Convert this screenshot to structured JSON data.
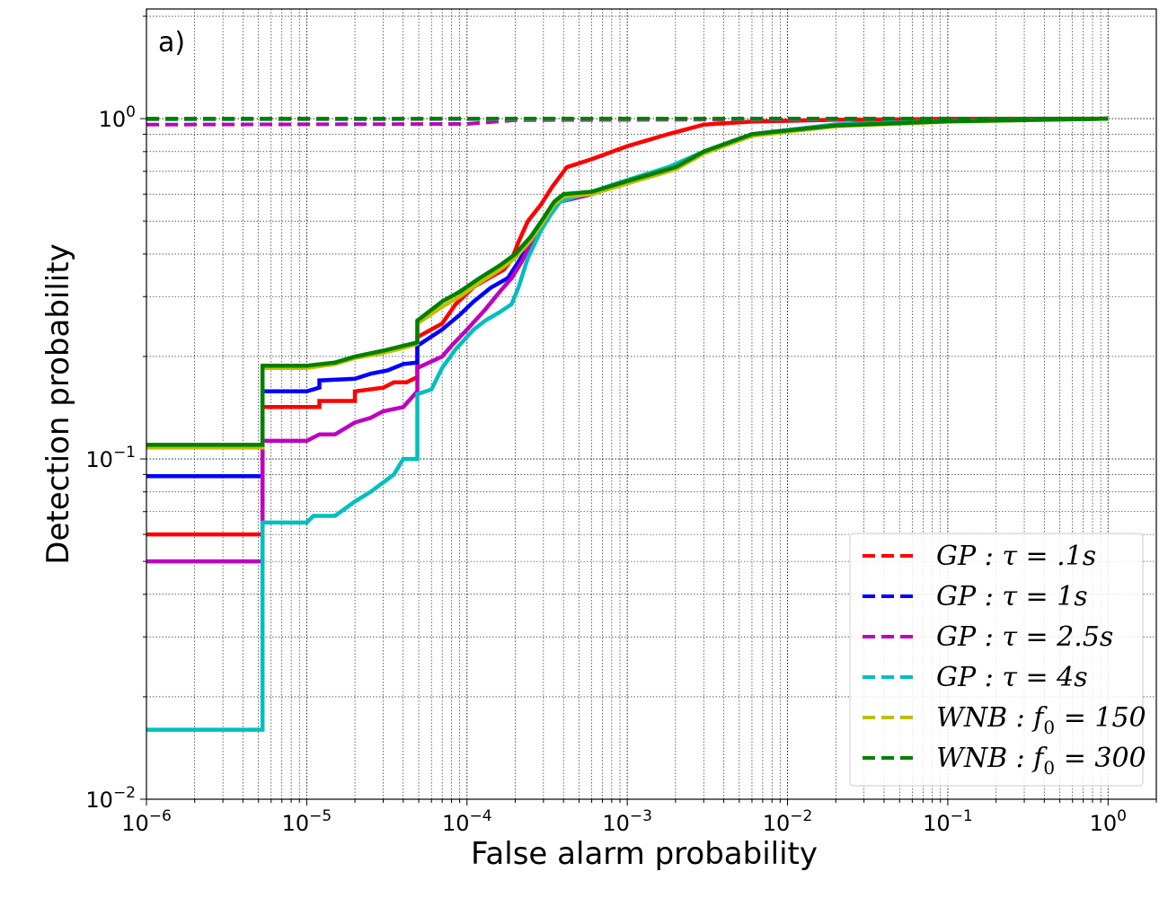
{
  "chart_data": {
    "type": "line",
    "panel_label": "a)",
    "xlabel": "False alarm probability",
    "ylabel": "Detection probability",
    "xscale": "log",
    "yscale": "log",
    "xlim": [
      1e-06,
      2
    ],
    "ylim": [
      0.01,
      2.1
    ],
    "grid": "major and minor, dotted",
    "legend_position": "lower-right",
    "x_ticks": [
      {
        "value": 1e-06,
        "base": "10",
        "exp": "−6"
      },
      {
        "value": 1e-05,
        "base": "10",
        "exp": "−5"
      },
      {
        "value": 0.0001,
        "base": "10",
        "exp": "−4"
      },
      {
        "value": 0.001,
        "base": "10",
        "exp": "−3"
      },
      {
        "value": 0.01,
        "base": "10",
        "exp": "−2"
      },
      {
        "value": 0.1,
        "base": "10",
        "exp": "−1"
      },
      {
        "value": 1,
        "base": "10",
        "exp": "0"
      }
    ],
    "y_ticks": [
      {
        "value": 0.01,
        "base": "10",
        "exp": "−2"
      },
      {
        "value": 0.1,
        "base": "10",
        "exp": "−1"
      },
      {
        "value": 1,
        "base": "10",
        "exp": "0"
      }
    ],
    "series": [
      {
        "name": "GP : τ = .1s",
        "legend": {
          "pre": "GP",
          "sub": "",
          "post": " : τ = .1s"
        },
        "color": "#ff0000",
        "roc": [
          [
            1e-06,
            0.06
          ],
          [
            5.3e-06,
            0.06
          ],
          [
            5.3e-06,
            0.142
          ],
          [
            1.2e-05,
            0.142
          ],
          [
            1.2e-05,
            0.148
          ],
          [
            2e-05,
            0.148
          ],
          [
            2e-05,
            0.158
          ],
          [
            3e-05,
            0.162
          ],
          [
            3.5e-05,
            0.168
          ],
          [
            4.2e-05,
            0.168
          ],
          [
            4.9e-05,
            0.174
          ],
          [
            4.9e-05,
            0.228
          ],
          [
            7e-05,
            0.25
          ],
          [
            8.5e-05,
            0.285
          ],
          [
            0.00011,
            0.32
          ],
          [
            0.00014,
            0.342
          ],
          [
            0.00017,
            0.36
          ],
          [
            0.00019,
            0.385
          ],
          [
            0.00021,
            0.435
          ],
          [
            0.00024,
            0.5
          ],
          [
            0.00029,
            0.56
          ],
          [
            0.00034,
            0.63
          ],
          [
            0.00042,
            0.72
          ],
          [
            0.0006,
            0.76
          ],
          [
            0.001,
            0.83
          ],
          [
            0.0018,
            0.9
          ],
          [
            0.003,
            0.96
          ],
          [
            0.006,
            0.98
          ],
          [
            0.02,
            0.992
          ],
          [
            0.1,
            0.998
          ],
          [
            1,
            1.0
          ]
        ],
        "bound": [
          [
            1e-06,
            0.998
          ],
          [
            1,
            1.0
          ]
        ]
      },
      {
        "name": "GP : τ = 1s",
        "legend": {
          "pre": "GP",
          "sub": "",
          "post": " : τ = 1s"
        },
        "color": "#0000ff",
        "roc": [
          [
            1e-06,
            0.089
          ],
          [
            5.3e-06,
            0.089
          ],
          [
            5.3e-06,
            0.158
          ],
          [
            1e-05,
            0.158
          ],
          [
            1.2e-05,
            0.162
          ],
          [
            1.2e-05,
            0.17
          ],
          [
            2e-05,
            0.172
          ],
          [
            2.5e-05,
            0.178
          ],
          [
            3.2e-05,
            0.182
          ],
          [
            4e-05,
            0.19
          ],
          [
            4.9e-05,
            0.192
          ],
          [
            4.9e-05,
            0.215
          ],
          [
            7e-05,
            0.24
          ],
          [
            9e-05,
            0.265
          ],
          [
            0.00011,
            0.29
          ],
          [
            0.00014,
            0.318
          ],
          [
            0.00018,
            0.34
          ],
          [
            0.00021,
            0.38
          ],
          [
            0.00024,
            0.42
          ],
          [
            0.00028,
            0.46
          ],
          [
            0.00033,
            0.52
          ],
          [
            0.00038,
            0.57
          ],
          [
            0.0006,
            0.6
          ],
          [
            0.001,
            0.65
          ],
          [
            0.002,
            0.72
          ],
          [
            0.003,
            0.8
          ],
          [
            0.006,
            0.9
          ],
          [
            0.02,
            0.96
          ],
          [
            0.1,
            0.985
          ],
          [
            1,
            1.0
          ]
        ],
        "bound": [
          [
            1e-06,
            0.995
          ],
          [
            1,
            1.0
          ]
        ]
      },
      {
        "name": "GP : τ = 2.5s",
        "legend": {
          "pre": "GP",
          "sub": "",
          "post": " : τ = 2.5s"
        },
        "color": "#bf00bf",
        "roc": [
          [
            1e-06,
            0.05
          ],
          [
            5.3e-06,
            0.05
          ],
          [
            5.3e-06,
            0.113
          ],
          [
            1e-05,
            0.113
          ],
          [
            1.2e-05,
            0.118
          ],
          [
            1.5e-05,
            0.118
          ],
          [
            2e-05,
            0.128
          ],
          [
            2.5e-05,
            0.132
          ],
          [
            3e-05,
            0.138
          ],
          [
            4e-05,
            0.142
          ],
          [
            4.9e-05,
            0.158
          ],
          [
            4.9e-05,
            0.185
          ],
          [
            7e-05,
            0.2
          ],
          [
            8e-05,
            0.215
          ],
          [
            0.0001,
            0.24
          ],
          [
            0.00013,
            0.275
          ],
          [
            0.00016,
            0.31
          ],
          [
            0.00019,
            0.34
          ],
          [
            0.00022,
            0.38
          ],
          [
            0.00025,
            0.43
          ],
          [
            0.00029,
            0.48
          ],
          [
            0.00033,
            0.53
          ],
          [
            0.00038,
            0.57
          ],
          [
            0.0006,
            0.6
          ],
          [
            0.001,
            0.65
          ],
          [
            0.002,
            0.72
          ],
          [
            0.003,
            0.8
          ],
          [
            0.006,
            0.9
          ],
          [
            0.02,
            0.96
          ],
          [
            0.1,
            0.985
          ],
          [
            1,
            1.0
          ]
        ],
        "bound": [
          [
            1e-06,
            0.96
          ],
          [
            0.0001,
            0.965
          ],
          [
            0.0002,
            0.99
          ],
          [
            1,
            1.0
          ]
        ]
      },
      {
        "name": "GP : τ = 4s",
        "legend": {
          "pre": "GP",
          "sub": "",
          "post": " : τ = 4s"
        },
        "color": "#00bfbf",
        "roc": [
          [
            1e-06,
            0.016
          ],
          [
            5.3e-06,
            0.016
          ],
          [
            5.3e-06,
            0.065
          ],
          [
            1e-05,
            0.065
          ],
          [
            1.1e-05,
            0.068
          ],
          [
            1.5e-05,
            0.068
          ],
          [
            2e-05,
            0.075
          ],
          [
            2.5e-05,
            0.08
          ],
          [
            3.5e-05,
            0.09
          ],
          [
            4e-05,
            0.1
          ],
          [
            4.9e-05,
            0.1
          ],
          [
            4.9e-05,
            0.155
          ],
          [
            6e-05,
            0.16
          ],
          [
            7e-05,
            0.185
          ],
          [
            8.5e-05,
            0.21
          ],
          [
            0.00011,
            0.24
          ],
          [
            0.00013,
            0.255
          ],
          [
            0.00016,
            0.27
          ],
          [
            0.00019,
            0.285
          ],
          [
            0.00021,
            0.32
          ],
          [
            0.00024,
            0.39
          ],
          [
            0.00029,
            0.47
          ],
          [
            0.00033,
            0.52
          ],
          [
            0.00038,
            0.57
          ],
          [
            0.0006,
            0.61
          ],
          [
            0.001,
            0.66
          ],
          [
            0.0018,
            0.72
          ],
          [
            0.003,
            0.8
          ],
          [
            0.006,
            0.9
          ],
          [
            0.02,
            0.96
          ],
          [
            0.1,
            0.985
          ],
          [
            1,
            1.0
          ]
        ],
        "bound": [
          [
            1e-06,
            0.995
          ],
          [
            1,
            1.0
          ]
        ]
      },
      {
        "name": "WNB : f0 = 150",
        "legend": {
          "pre": "WNB : f",
          "sub": "0",
          "post": " = 150"
        },
        "color": "#bfbf00",
        "roc": [
          [
            1e-06,
            0.108
          ],
          [
            5.3e-06,
            0.108
          ],
          [
            5.3e-06,
            0.185
          ],
          [
            1e-05,
            0.185
          ],
          [
            1.5e-05,
            0.19
          ],
          [
            2e-05,
            0.198
          ],
          [
            3e-05,
            0.205
          ],
          [
            4e-05,
            0.212
          ],
          [
            4.9e-05,
            0.218
          ],
          [
            4.9e-05,
            0.25
          ],
          [
            7e-05,
            0.28
          ],
          [
            9e-05,
            0.3
          ],
          [
            0.00012,
            0.33
          ],
          [
            0.00016,
            0.36
          ],
          [
            0.0002,
            0.39
          ],
          [
            0.00025,
            0.44
          ],
          [
            0.0003,
            0.5
          ],
          [
            0.00035,
            0.56
          ],
          [
            0.0004,
            0.59
          ],
          [
            0.0006,
            0.6
          ],
          [
            0.001,
            0.645
          ],
          [
            0.002,
            0.71
          ],
          [
            0.003,
            0.79
          ],
          [
            0.006,
            0.89
          ],
          [
            0.02,
            0.95
          ],
          [
            0.1,
            0.98
          ],
          [
            1,
            1.0
          ]
        ],
        "bound": [
          [
            1e-06,
            0.998
          ],
          [
            1,
            1.0
          ]
        ]
      },
      {
        "name": "WNB : f0 = 300",
        "legend": {
          "pre": "WNB : f",
          "sub": "0",
          "post": " = 300"
        },
        "color": "#008000",
        "roc": [
          [
            1e-06,
            0.11
          ],
          [
            5.3e-06,
            0.11
          ],
          [
            5.3e-06,
            0.188
          ],
          [
            1e-05,
            0.188
          ],
          [
            1.5e-05,
            0.192
          ],
          [
            2e-05,
            0.2
          ],
          [
            3e-05,
            0.208
          ],
          [
            4e-05,
            0.215
          ],
          [
            4.9e-05,
            0.22
          ],
          [
            4.9e-05,
            0.255
          ],
          [
            7e-05,
            0.29
          ],
          [
            9e-05,
            0.31
          ],
          [
            0.00012,
            0.34
          ],
          [
            0.00016,
            0.37
          ],
          [
            0.0002,
            0.4
          ],
          [
            0.00025,
            0.45
          ],
          [
            0.0003,
            0.51
          ],
          [
            0.00035,
            0.57
          ],
          [
            0.0004,
            0.6
          ],
          [
            0.0006,
            0.61
          ],
          [
            0.001,
            0.655
          ],
          [
            0.002,
            0.72
          ],
          [
            0.003,
            0.8
          ],
          [
            0.006,
            0.9
          ],
          [
            0.02,
            0.955
          ],
          [
            0.1,
            0.982
          ],
          [
            1,
            1.0
          ]
        ],
        "bound": [
          [
            1e-06,
            1.0
          ],
          [
            1,
            1.0
          ]
        ]
      }
    ]
  }
}
